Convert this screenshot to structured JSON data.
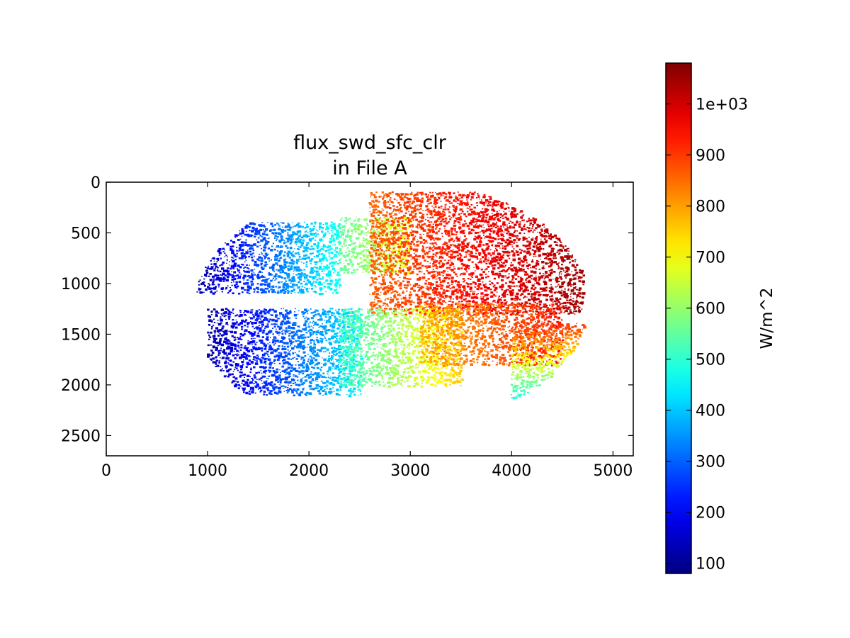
{
  "chart_data": {
    "type": "heatmap",
    "title_lines": [
      "flux_swd_sfc_clr",
      "in File A"
    ],
    "xlabel": "",
    "ylabel": "",
    "xlim": [
      0,
      5200
    ],
    "ylim": [
      2700,
      0
    ],
    "xticks": [
      0,
      1000,
      2000,
      3000,
      4000,
      5000
    ],
    "xtick_labels": [
      "0",
      "1000",
      "2000",
      "3000",
      "4000",
      "5000"
    ],
    "yticks": [
      0,
      500,
      1000,
      1500,
      2000,
      2500
    ],
    "ytick_labels": [
      "0",
      "500",
      "1000",
      "1500",
      "2000",
      "2500"
    ],
    "colorbar": {
      "label": "W/m^2",
      "range": [
        80,
        1080
      ],
      "colormap": "jet",
      "ticks": [
        100,
        200,
        300,
        400,
        500,
        600,
        700,
        800,
        900,
        1000
      ],
      "tick_labels": [
        "100",
        "200",
        "300",
        "400",
        "500",
        "600",
        "700",
        "800",
        "900",
        "1e+03"
      ]
    },
    "disk": {
      "center": [
        2800,
        1220
      ],
      "semi_axes": [
        1950,
        1230
      ],
      "rotation_deg": -2
    },
    "regions": [
      {
        "name": "north-left-band",
        "x": [
          900,
          2300
        ],
        "y": [
          400,
          1100
        ],
        "values": [
          120,
          480
        ],
        "direction": "x"
      },
      {
        "name": "north-mid-patches",
        "x": [
          2300,
          3000
        ],
        "y": [
          350,
          900
        ],
        "values": [
          550,
          700
        ],
        "direction": "x"
      },
      {
        "name": "north-right-land",
        "x": [
          2600,
          4700
        ],
        "y": [
          100,
          1300
        ],
        "values": [
          860,
          1050
        ],
        "direction": "x"
      },
      {
        "name": "south-left-band",
        "x": [
          1000,
          2500
        ],
        "y": [
          1250,
          2100
        ],
        "values": [
          120,
          450
        ],
        "direction": "x"
      },
      {
        "name": "south-mid-band",
        "x": [
          2300,
          3500
        ],
        "y": [
          1250,
          2000
        ],
        "values": [
          500,
          760
        ],
        "direction": "x"
      },
      {
        "name": "south-right-band",
        "x": [
          3100,
          4500
        ],
        "y": [
          1200,
          1800
        ],
        "values": [
          780,
          940
        ],
        "direction": "x"
      },
      {
        "name": "east-rim",
        "x": [
          4000,
          4750
        ],
        "y": [
          1400,
          2400
        ],
        "values": [
          900,
          320
        ],
        "direction": "y"
      }
    ]
  }
}
